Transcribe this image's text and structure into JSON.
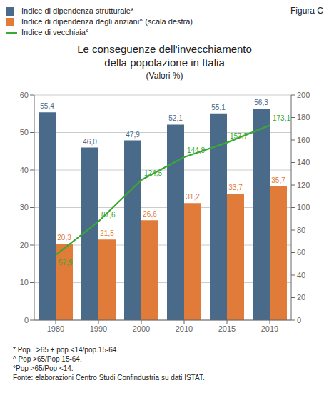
{
  "chart_data": {
    "type": "bar",
    "title": "Le conseguenze dell'invecchiamento\ndella popolazione in Italia",
    "subtitle": "(Valori %)",
    "annotations": [
      "Figura C",
      "* Pop.  >65 + pop.<14/pop.15-64.",
      "^ Pop >65/Pop 15-64.",
      "°Pop >65/Pop <14.",
      "Fonte: elaborazioni Centro Studi Confindustria su dati ISTAT."
    ],
    "categories": [
      "1980",
      "1990",
      "2000",
      "2010",
      "2015",
      "2019"
    ],
    "series": [
      {
        "name": "Indice di dipendenza strutturale*",
        "type": "bar",
        "color": "#4a6a8a",
        "values": [
          55.4,
          46.0,
          47.9,
          52.1,
          55.1,
          56.3
        ],
        "value_labels": [
          "55,4",
          "46,0",
          "47,9",
          "52,1",
          "55,1",
          "56,3"
        ]
      },
      {
        "name": "Indice di dipendenza degli anziani^ (scala destra)",
        "type": "bar",
        "color": "#e07b39",
        "values": [
          20.3,
          21.5,
          26.6,
          31.2,
          33.7,
          35.7
        ],
        "value_labels": [
          "20,3",
          "21,5",
          "26,6",
          "31,2",
          "33,7",
          "35,7"
        ]
      },
      {
        "name": "Indice di vecchiaia°",
        "type": "line",
        "axis": "y2",
        "color": "#3aa832",
        "values": [
          57.9,
          87.6,
          124.5,
          144.8,
          157.7,
          173.1
        ],
        "value_labels": [
          "57,9",
          "87,6",
          "124,5",
          "144,8",
          "157,7",
          "173,1"
        ]
      }
    ],
    "ylim": [
      0,
      60
    ],
    "yticks": [
      0,
      10,
      20,
      30,
      40,
      50,
      60
    ],
    "y2lim": [
      0,
      200
    ],
    "y2ticks": [
      0,
      20,
      40,
      60,
      80,
      100,
      120,
      140,
      160,
      180,
      200
    ],
    "grid": true,
    "legend": "upper left",
    "data_labels": true
  }
}
